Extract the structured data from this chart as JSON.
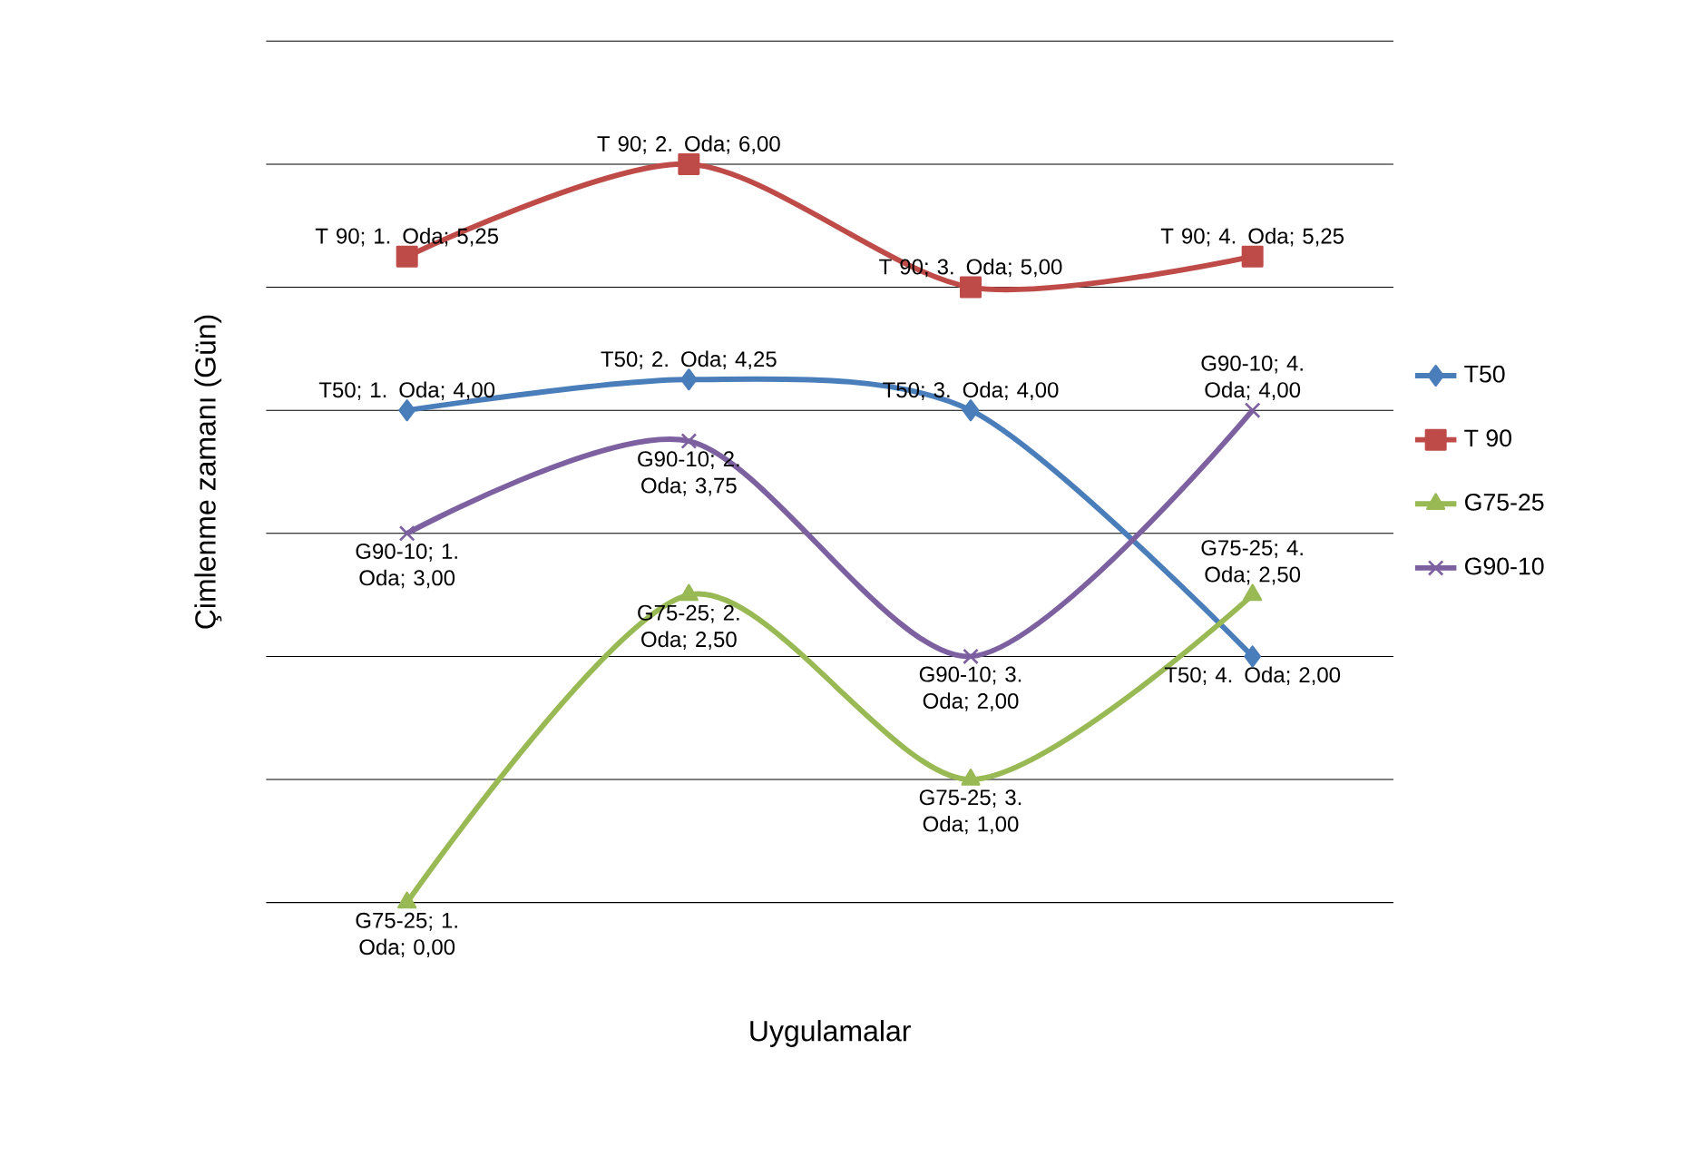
{
  "chart_data": {
    "type": "line",
    "xlabel": "Uygulamalar",
    "ylabel": "Çimlenme zamanı (Gün)",
    "categories": [
      null,
      null,
      null,
      null
    ],
    "ylim": [
      0,
      7
    ],
    "yticks": [
      {
        "value": 0,
        "label": null
      },
      {
        "value": 1,
        "label": null
      },
      {
        "value": 2,
        "label": null
      },
      {
        "value": 3,
        "label": null
      },
      {
        "value": 4,
        "label": null
      },
      {
        "value": 5,
        "label": null
      },
      {
        "value": 6,
        "label": null
      },
      {
        "value": 7,
        "label": null
      }
    ],
    "grid": "y",
    "legend": "right",
    "series": [
      {
        "name": "T50",
        "color": "#4a7ebb",
        "marker": "diamond",
        "values": [
          4.0,
          4.25,
          4.0,
          2.0
        ],
        "value_labels": [
          "T50; 1. Oda; 4,00",
          "T50; 2. Oda; 4,25",
          "T50; 3. Oda; 4,00",
          "T50; 4. Oda; 2,00"
        ]
      },
      {
        "name": "T 90",
        "color": "#be4b48",
        "marker": "square",
        "values": [
          5.25,
          6.0,
          5.0,
          5.25
        ],
        "value_labels": [
          "T 90; 1. Oda; 5,25",
          "T 90; 2. Oda; 6,00",
          "T 90; 3. Oda; 5,00",
          "T 90; 4. Oda; 5,25"
        ]
      },
      {
        "name": "G75-25",
        "color": "#98b954",
        "marker": "triangle",
        "values": [
          0.0,
          2.5,
          1.0,
          2.5
        ],
        "value_labels": [
          "G75-25; 1. Oda; 0,00",
          "G75-25; 2. Oda; 2,50",
          "G75-25; 3. Oda; 1,00",
          "G75-25; 4. Oda; 2,50"
        ]
      },
      {
        "name": "G90-10",
        "color": "#7d60a0",
        "marker": "cross",
        "values": [
          3.0,
          3.75,
          2.0,
          4.0
        ],
        "value_labels": [
          "G90-10; 1. Oda; 3,00",
          "G90-10; 2. Oda; 3,75",
          "G90-10; 3. Oda; 2,00",
          "G90-10; 4. Oda; 4,00"
        ]
      }
    ]
  }
}
